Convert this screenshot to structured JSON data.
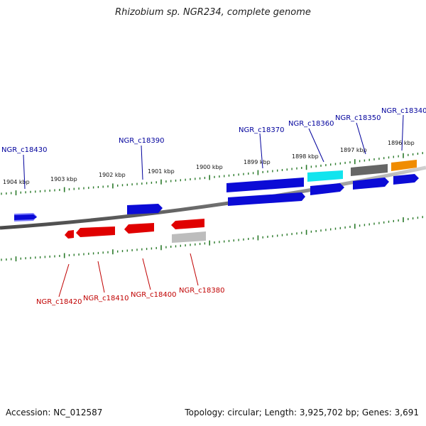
{
  "title": "Rhizobium sp. NGR234, complete genome",
  "footer": {
    "accession": "Accession: NC_012587",
    "topology": "Topology: circular; Length: 3,925,702 bp; Genes: 3,691"
  },
  "colors": {
    "backbone": "#8c8c8c",
    "tick": "#2a7a2a",
    "top_label": "#00009c",
    "bottom_label": "#c00000",
    "forward_gene": "#0b0bd6",
    "reverse_gene": "#e00000",
    "pseudo_grey": "#bdbdbd",
    "cyan_gene": "#12e4ee",
    "dark_grey_gene": "#666666",
    "orange_gene": "#f08c00"
  },
  "scale_labels": [
    "1904 kbp",
    "1903 kbp",
    "1902 kbp",
    "1901 kbp",
    "1900 kbp",
    "1899 kbp",
    "1898 kbp",
    "1897 kbp",
    "1896 kbp"
  ],
  "top_gene_labels": [
    "NGR_c18430",
    "NGR_c18390",
    "NGR_c18370",
    "NGR_c18360",
    "NGR_c18350",
    "NGR_c18340"
  ],
  "bottom_gene_labels": [
    "NGR_c18420",
    "NGR_c18410",
    "NGR_c18400",
    "NGR_c18380"
  ]
}
